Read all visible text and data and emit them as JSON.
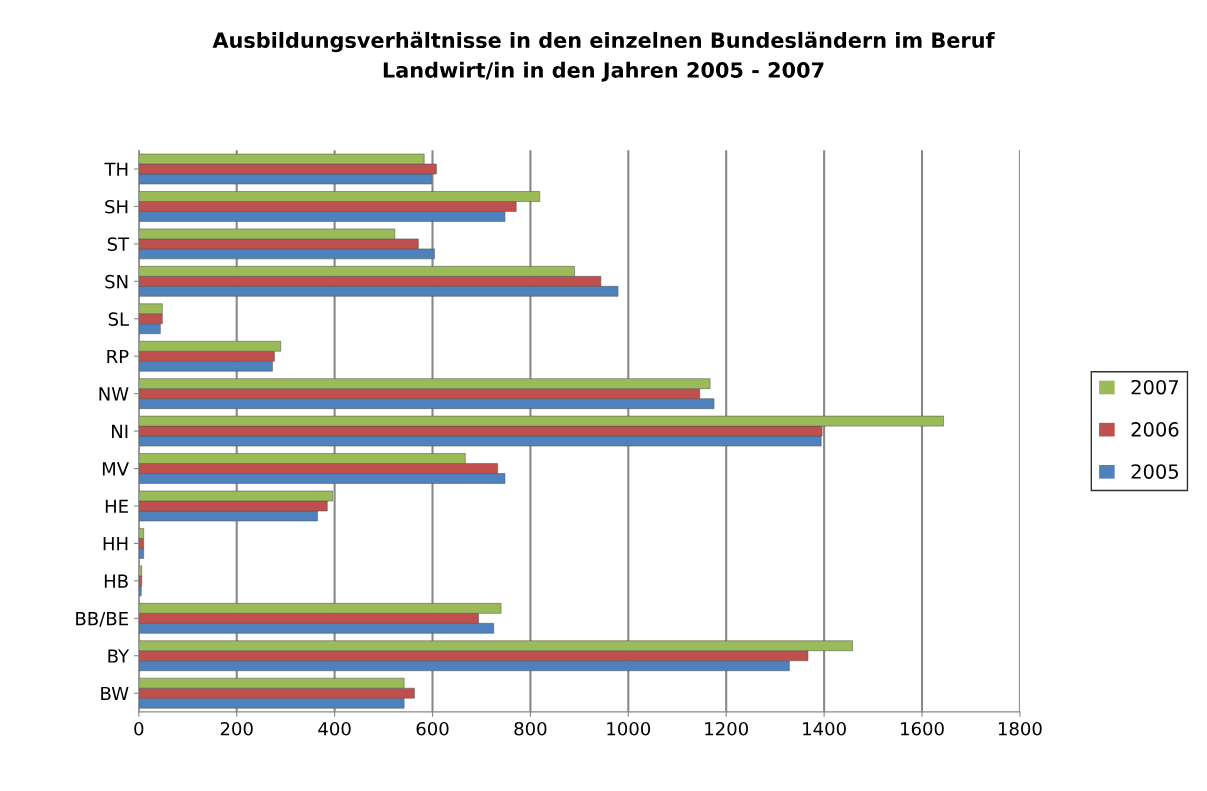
{
  "chart_data": {
    "type": "bar",
    "orientation": "horizontal",
    "title": "Ausbildungsverhältnisse in den einzelnen Bundesländern im Beruf\nLandwirt/in in den Jahren 2005 - 2007",
    "categories": [
      "TH",
      "SH",
      "ST",
      "SN",
      "SL",
      "RP",
      "NW",
      "NI",
      "MV",
      "HE",
      "HH",
      "HB",
      "BB/BE",
      "BY",
      "BW"
    ],
    "series": [
      {
        "name": "2005",
        "color": "#4f81bd",
        "values": [
          598,
          748,
          604,
          979,
          44,
          273,
          1175,
          1394,
          748,
          365,
          10,
          5,
          725,
          1329,
          542
        ]
      },
      {
        "name": "2006",
        "color": "#c0504d",
        "values": [
          608,
          771,
          571,
          944,
          48,
          277,
          1146,
          1396,
          733,
          385,
          10,
          6,
          694,
          1367,
          563
        ]
      },
      {
        "name": "2007",
        "color": "#9bbb59",
        "values": [
          583,
          819,
          523,
          890,
          48,
          290,
          1167,
          1644,
          667,
          396,
          10,
          6,
          740,
          1458,
          542
        ]
      }
    ],
    "xlim": [
      0,
      1800
    ],
    "xticks": [
      0,
      200,
      400,
      600,
      800,
      1000,
      1200,
      1400,
      1600,
      1800
    ],
    "grid": "x",
    "legend": "right"
  }
}
